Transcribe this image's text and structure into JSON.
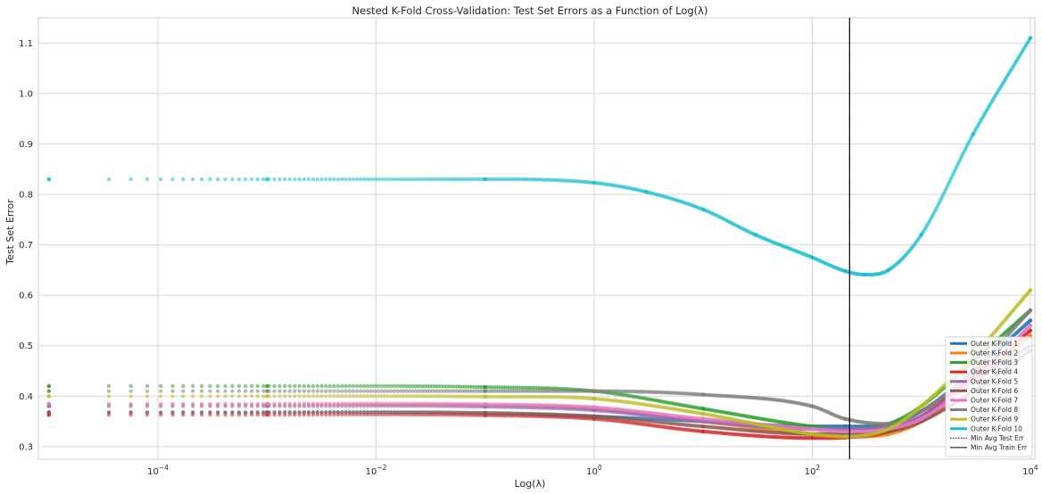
{
  "chart_data": {
    "type": "scatter",
    "title": "Nested K-Fold Cross-Validation: Test Set Errors as a Function of Log(λ)",
    "xlabel": "Log(λ)",
    "ylabel": "Test Set Error",
    "xscale": "log",
    "xlim": [
      8e-06,
      11000
    ],
    "ylim": [
      0.275,
      1.15
    ],
    "grid": true,
    "legend_position": "bottom-right",
    "x_ticks": [
      {
        "value": 0.0001,
        "base": "10",
        "exp": "−4"
      },
      {
        "value": 0.01,
        "base": "10",
        "exp": "−2"
      },
      {
        "value": 1,
        "base": "10",
        "exp": "0"
      },
      {
        "value": 100,
        "base": "10",
        "exp": "2"
      },
      {
        "value": 10000,
        "base": "10",
        "exp": "4"
      }
    ],
    "y_ticks": [
      {
        "value": 0.3,
        "label": "0.3"
      },
      {
        "value": 0.4,
        "label": "0.4"
      },
      {
        "value": 0.5,
        "label": "0.5"
      },
      {
        "value": 0.6,
        "label": "0.6"
      },
      {
        "value": 0.7,
        "label": "0.7"
      },
      {
        "value": 0.8,
        "label": "0.8"
      },
      {
        "value": 0.9,
        "label": "0.9"
      },
      {
        "value": 1.0,
        "label": "1.0"
      },
      {
        "value": 1.1,
        "label": "1.1"
      }
    ],
    "series": [
      {
        "name": "Outer K-Fold 1",
        "color": "#1f77b4",
        "x": [
          1e-05,
          0.001,
          0.1,
          1,
          10,
          100,
          200,
          500,
          1000,
          3000,
          10000
        ],
        "y": [
          0.368,
          0.368,
          0.366,
          0.36,
          0.35,
          0.34,
          0.34,
          0.345,
          0.37,
          0.45,
          0.55
        ]
      },
      {
        "name": "Outer K-Fold 2",
        "color": "#ff7f0e",
        "x": [
          1e-05,
          0.001,
          0.1,
          1,
          10,
          100,
          200,
          500,
          1000,
          3000,
          10000
        ],
        "y": [
          0.383,
          0.383,
          0.382,
          0.375,
          0.35,
          0.325,
          0.32,
          0.325,
          0.35,
          0.43,
          0.52
        ]
      },
      {
        "name": "Outer K-Fold 3",
        "color": "#2ca02c",
        "x": [
          1e-05,
          0.001,
          0.1,
          1,
          10,
          100,
          200,
          500,
          1000,
          3000,
          10000
        ],
        "y": [
          0.42,
          0.42,
          0.418,
          0.41,
          0.375,
          0.34,
          0.335,
          0.345,
          0.38,
          0.47,
          0.57
        ]
      },
      {
        "name": "Outer K-Fold 4",
        "color": "#d62728",
        "x": [
          1e-05,
          0.001,
          0.1,
          1,
          10,
          100,
          200,
          500,
          1000,
          3000,
          10000
        ],
        "y": [
          0.363,
          0.363,
          0.362,
          0.355,
          0.33,
          0.317,
          0.318,
          0.33,
          0.36,
          0.44,
          0.53
        ]
      },
      {
        "name": "Outer K-Fold 5",
        "color": "#9467bd",
        "x": [
          1e-05,
          0.001,
          0.1,
          1,
          10,
          100,
          200,
          500,
          1000,
          3000,
          10000
        ],
        "y": [
          0.38,
          0.38,
          0.379,
          0.372,
          0.35,
          0.335,
          0.335,
          0.34,
          0.36,
          0.43,
          0.5
        ]
      },
      {
        "name": "Outer K-Fold 6",
        "color": "#8c564b",
        "x": [
          1e-05,
          0.001,
          0.1,
          1,
          10,
          100,
          200,
          500,
          1000,
          3000,
          10000
        ],
        "y": [
          0.368,
          0.368,
          0.367,
          0.36,
          0.34,
          0.325,
          0.325,
          0.33,
          0.35,
          0.41,
          0.49
        ]
      },
      {
        "name": "Outer K-Fold 7",
        "color": "#e377c2",
        "x": [
          1e-05,
          0.001,
          0.1,
          1,
          10,
          100,
          200,
          500,
          1000,
          3000,
          10000
        ],
        "y": [
          0.385,
          0.385,
          0.384,
          0.378,
          0.355,
          0.335,
          0.33,
          0.335,
          0.355,
          0.43,
          0.54
        ]
      },
      {
        "name": "Outer K-Fold 8",
        "color": "#7f7f7f",
        "x": [
          1e-05,
          0.001,
          0.1,
          1,
          10,
          100,
          200,
          500,
          1000,
          3000,
          10000
        ],
        "y": [
          0.41,
          0.41,
          0.41,
          0.41,
          0.403,
          0.38,
          0.355,
          0.345,
          0.37,
          0.45,
          0.57
        ]
      },
      {
        "name": "Outer K-Fold 9",
        "color": "#bcbd22",
        "x": [
          1e-05,
          0.001,
          0.1,
          1,
          10,
          100,
          200,
          500,
          1000,
          3000,
          10000
        ],
        "y": [
          0.4,
          0.4,
          0.399,
          0.395,
          0.365,
          0.325,
          0.32,
          0.335,
          0.38,
          0.48,
          0.61
        ]
      },
      {
        "name": "Outer K-Fold 10",
        "color": "#17becf",
        "x": [
          1e-05,
          0.001,
          0.1,
          1,
          3,
          10,
          30,
          100,
          200,
          300,
          500,
          1000,
          3000,
          10000
        ],
        "y": [
          0.83,
          0.83,
          0.83,
          0.823,
          0.805,
          0.77,
          0.72,
          0.675,
          0.648,
          0.641,
          0.65,
          0.72,
          0.92,
          1.11
        ]
      }
    ],
    "vlines": [
      {
        "name": "Min Avg Test Err",
        "x": 220,
        "style": "dotted",
        "color": "#000000"
      },
      {
        "name": "Min Avg Train Err",
        "x": 220,
        "style": "solid",
        "color": "#000000"
      }
    ]
  }
}
